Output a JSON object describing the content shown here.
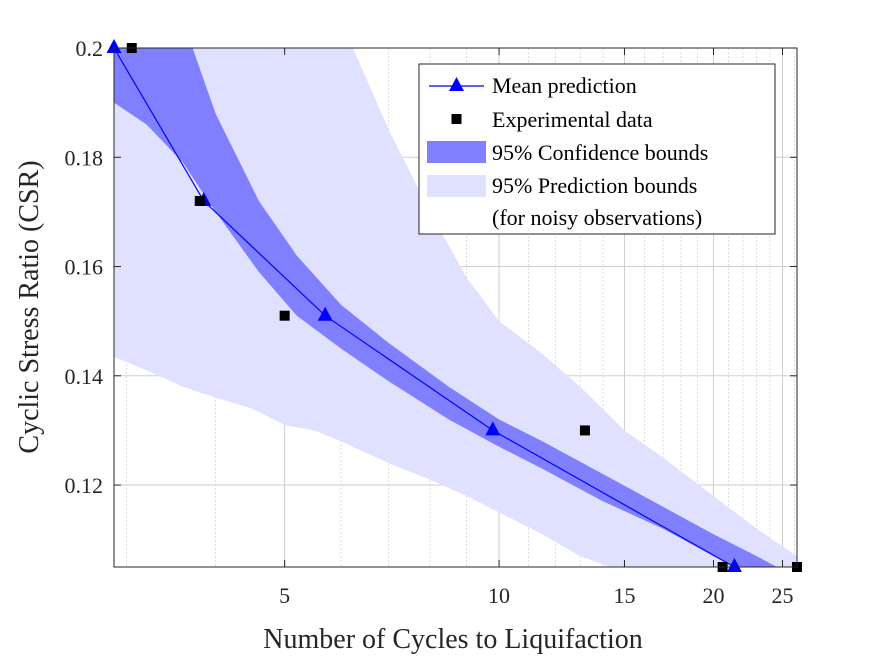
{
  "chart_data": {
    "type": "line",
    "xscale": "log",
    "xlabel": "Number of Cycles to Liquifaction",
    "ylabel": "Cyclic Stress Ratio (CSR)",
    "xlim": [
      2.88,
      26.2
    ],
    "ylim": [
      0.105,
      0.2
    ],
    "xticks": [
      5,
      10,
      15,
      20,
      25
    ],
    "xtick_labels": [
      "5",
      "10",
      "15",
      "20",
      "25"
    ],
    "yticks": [
      0.12,
      0.14,
      0.16,
      0.18,
      0.2
    ],
    "ytick_labels": [
      "0.12",
      "0.14",
      "0.16",
      "0.18",
      "0.2"
    ],
    "grid": true,
    "legend_position": "top-right",
    "mean_prediction": {
      "name": "Mean prediction",
      "color": "#0000ff",
      "x": [
        2.88,
        3.85,
        5.7,
        9.8,
        21.4
      ],
      "y": [
        0.2,
        0.172,
        0.151,
        0.13,
        0.105
      ]
    },
    "experimental_data": {
      "name": "Experimental data",
      "color": "#000000",
      "x": [
        3.05,
        3.8,
        5.0,
        13.2,
        20.6,
        26.2
      ],
      "y": [
        0.2,
        0.172,
        0.151,
        0.13,
        0.105,
        0.105
      ]
    },
    "confidence_bounds": {
      "name": "95% Confidence bounds",
      "color": "#8080ff",
      "x": [
        2.88,
        3.2,
        3.6,
        4.0,
        4.6,
        5.2,
        6.0,
        7.0,
        8.5,
        10.0,
        11.5,
        14.0,
        17.0,
        20.0,
        23.0,
        26.2
      ],
      "upper": [
        0.205,
        0.205,
        0.205,
        0.188,
        0.172,
        0.162,
        0.153,
        0.146,
        0.138,
        0.132,
        0.128,
        0.122,
        0.116,
        0.111,
        0.107,
        0.103
      ],
      "lower": [
        0.19,
        0.186,
        0.179,
        0.17,
        0.159,
        0.151,
        0.145,
        0.139,
        0.132,
        0.127,
        0.123,
        0.117,
        0.112,
        0.107,
        0.103,
        0.099
      ]
    },
    "prediction_bounds": {
      "name": "95% Prediction bounds",
      "name_line2": "(for noisy observations)",
      "color": "#e0e0ff",
      "x": [
        2.88,
        3.2,
        3.6,
        4.0,
        4.5,
        5.0,
        5.5,
        6.0,
        7.0,
        8.0,
        9.0,
        10.0,
        11.5,
        13.0,
        15.0,
        17.0,
        20.0,
        23.0,
        26.2
      ],
      "upper": [
        0.215,
        0.215,
        0.215,
        0.215,
        0.215,
        0.215,
        0.213,
        0.205,
        0.185,
        0.17,
        0.158,
        0.15,
        0.144,
        0.138,
        0.13,
        0.125,
        0.118,
        0.112,
        0.107
      ],
      "lower": [
        0.1435,
        0.141,
        0.138,
        0.136,
        0.134,
        0.131,
        0.13,
        0.128,
        0.124,
        0.121,
        0.118,
        0.115,
        0.111,
        0.107,
        0.104,
        0.1,
        0.097,
        0.095,
        0.093
      ]
    }
  }
}
